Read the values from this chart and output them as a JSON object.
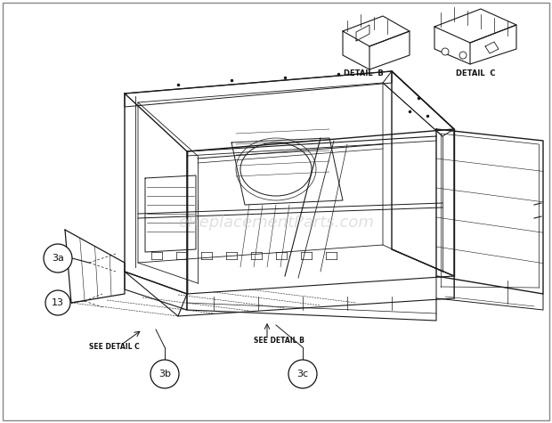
{
  "bg_color": "#ffffff",
  "border_color": "#aaaaaa",
  "line_color": "#1a1a1a",
  "text_color": "#111111",
  "watermark_text": "eReplacementParts.com",
  "watermark_color": "#bbbbbb",
  "watermark_alpha": 0.45,
  "detail_b_label": "DETAIL  B",
  "detail_c_label": "DETAIL  C",
  "see_detail_b_label": "SEE DETAIL B",
  "see_detail_c_label": "SEE DETAIL C",
  "callout_3a": "3a",
  "callout_13": "13",
  "callout_3b": "3b",
  "callout_3c": "3c",
  "fig_width": 6.2,
  "fig_height": 4.75,
  "dpi": 100
}
